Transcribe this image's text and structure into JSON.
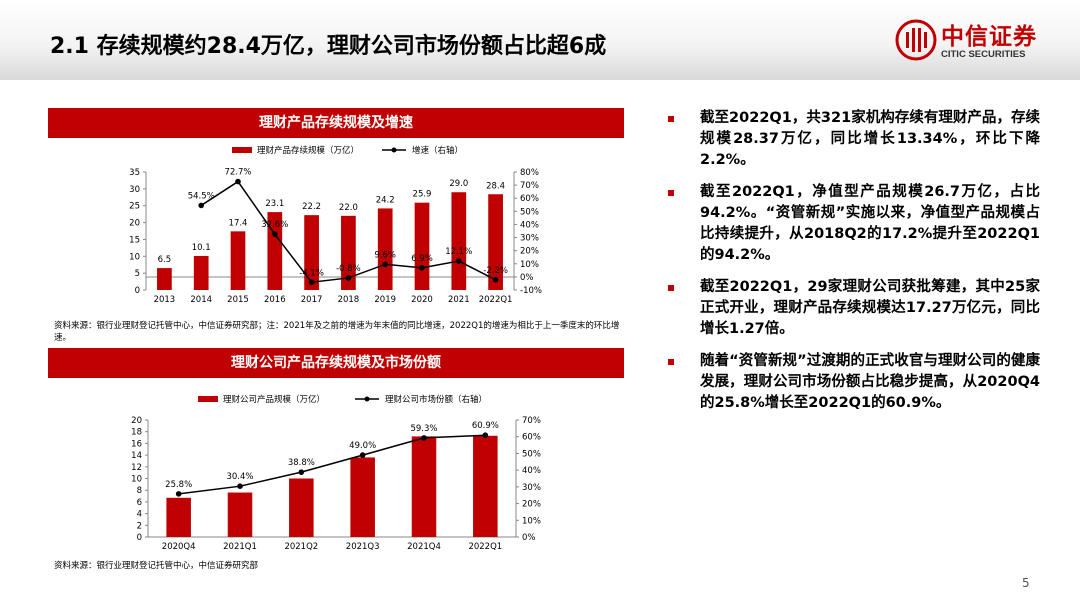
{
  "slide": {
    "title": "2.1 存续规模约28.4万亿，理财公司市场份额占比超6成",
    "logo_cn": "中信证券",
    "logo_en": "CITIC SECURITIES",
    "page_number": "5"
  },
  "chart1_header": "理财产品存续规模及增速",
  "chart1_note": "资料来源：银行业理财登记托管中心，中信证券研究部；注：2021年及之前的增速为年末值的同比增速，2022Q1的增速为相比于上一季度末的环比增速。",
  "chart2_header": "理财公司产品存续规模及市场份额",
  "chart2_note": "资料来源：银行业理财登记托管中心，中信证券研究部",
  "bullets": [
    "截至2022Q1，共321家机构存续有理财产品，存续规模28.37万亿，同比增长13.34%，环比下降2.2%。",
    "截至2022Q1，净值型产品规模26.7万亿，占比94.2%。“资管新规”实施以来，净值型产品规模占比持续提升，从2018Q2的17.2%提升至2022Q1的94.2%。",
    "截至2022Q1，29家理财公司获批筹建，其中25家正式开业，理财产品存续规模达17.27万亿元，同比增长1.27倍。",
    "随着“资管新规”过渡期的正式收官与理财公司的健康发展，理财公司市场份额占比稳步提高，从2020Q4的25.8%增长至2022Q1的60.9%。"
  ],
  "colors": {
    "accent": "#c00000",
    "line": "#000000"
  },
  "chart_data": [
    {
      "type": "bar",
      "title": "理财产品存续规模及增速",
      "categories": [
        "2013",
        "2014",
        "2015",
        "2016",
        "2017",
        "2018",
        "2019",
        "2020",
        "2021",
        "2022Q1"
      ],
      "series": [
        {
          "name": "理财产品存续规模（万亿）",
          "type": "bar",
          "axis": "left",
          "values": [
            6.5,
            10.1,
            17.4,
            23.1,
            22.2,
            22.0,
            24.2,
            25.9,
            29.0,
            28.4
          ],
          "labels": [
            "6.5",
            "10.1",
            "17.4",
            "23.1",
            "22.2",
            "22.0",
            "24.2",
            "25.9",
            "29.0",
            "28.4"
          ]
        },
        {
          "name": "增速（右轴）",
          "type": "line",
          "axis": "right",
          "values": [
            null,
            54.5,
            72.7,
            32.6,
            -4.1,
            -0.8,
            9.6,
            6.9,
            12.1,
            -2.2
          ],
          "labels": [
            null,
            "54.5%",
            "72.7%",
            "32.6%",
            "-4.1%",
            "-0.8%",
            "9.6%",
            "6.9%",
            "12.1%",
            "-2.2%"
          ]
        }
      ],
      "ylim": [
        0,
        35
      ],
      "yticks": [
        "0",
        "5",
        "10",
        "15",
        "20",
        "25",
        "30",
        "35"
      ],
      "y2lim": [
        -10,
        80
      ],
      "y2ticks": [
        "-10%",
        "0%",
        "10%",
        "20%",
        "30%",
        "40%",
        "50%",
        "60%",
        "70%",
        "80%"
      ],
      "legend": "top-center",
      "grid": false
    },
    {
      "type": "bar",
      "title": "理财公司产品存续规模及市场份额",
      "categories": [
        "2020Q4",
        "2021Q1",
        "2021Q2",
        "2021Q3",
        "2021Q4",
        "2022Q1"
      ],
      "series": [
        {
          "name": "理财公司产品规模（万亿）",
          "type": "bar",
          "axis": "left",
          "values": [
            6.7,
            7.6,
            10.0,
            13.6,
            17.2,
            17.3
          ]
        },
        {
          "name": "理财公司市场份额（右轴）",
          "type": "line",
          "axis": "right",
          "values": [
            25.8,
            30.4,
            38.8,
            49.0,
            59.3,
            60.9
          ],
          "labels": [
            "25.8%",
            "30.4%",
            "38.8%",
            "49.0%",
            "59.3%",
            "60.9%"
          ]
        }
      ],
      "ylim": [
        0,
        20
      ],
      "yticks": [
        "0",
        "2",
        "4",
        "6",
        "8",
        "10",
        "12",
        "14",
        "16",
        "18",
        "20"
      ],
      "y2lim": [
        0,
        70
      ],
      "y2ticks": [
        "0%",
        "10%",
        "20%",
        "30%",
        "40%",
        "50%",
        "60%",
        "70%"
      ],
      "legend": "top-center",
      "grid": false
    }
  ]
}
